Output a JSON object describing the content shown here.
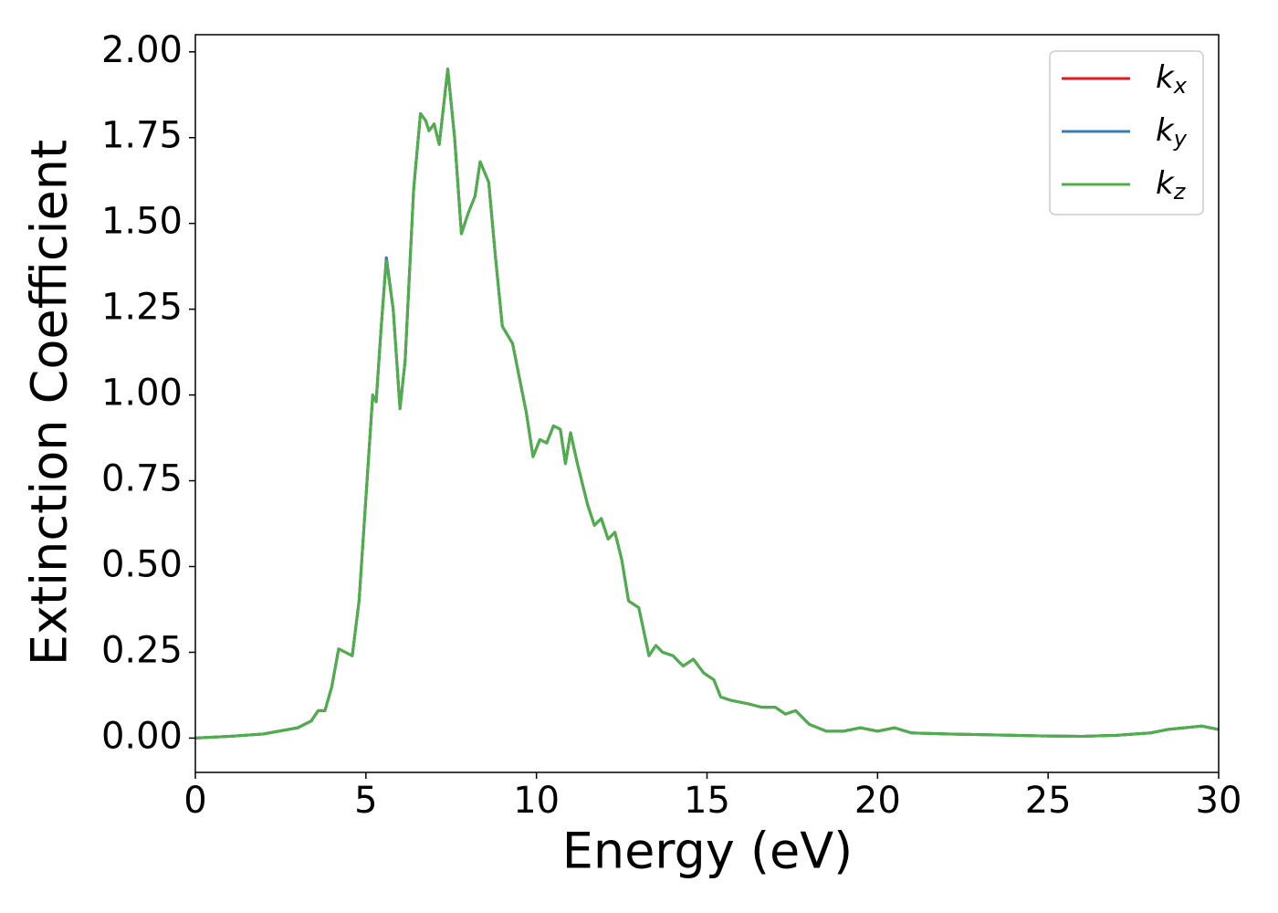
{
  "chart_data": {
    "type": "line",
    "xlabel": "Energy (eV)",
    "ylabel": "Extinction Coefficient",
    "x": [
      0,
      1,
      2,
      3,
      3.4,
      3.6,
      3.8,
      4.0,
      4.2,
      4.4,
      4.6,
      4.8,
      5.0,
      5.2,
      5.3,
      5.45,
      5.6,
      5.8,
      6.0,
      6.15,
      6.4,
      6.6,
      6.75,
      6.85,
      7.0,
      7.15,
      7.4,
      7.6,
      7.8,
      8.0,
      8.2,
      8.35,
      8.6,
      8.8,
      9.0,
      9.3,
      9.5,
      9.7,
      9.9,
      10.1,
      10.3,
      10.5,
      10.7,
      10.85,
      11.0,
      11.2,
      11.5,
      11.7,
      11.9,
      12.1,
      12.3,
      12.5,
      12.7,
      13.0,
      13.3,
      13.5,
      13.7,
      14.0,
      14.3,
      14.6,
      14.9,
      15.2,
      15.4,
      15.7,
      16.2,
      16.6,
      17.0,
      17.3,
      17.6,
      18.0,
      18.5,
      19.0,
      19.5,
      20.0,
      20.5,
      21,
      22,
      23,
      24,
      25,
      26,
      27,
      28,
      28.5,
      29,
      29.5,
      30
    ],
    "series": [
      {
        "name": "kx",
        "color": "#e41a1c",
        "values": [
          0,
          0.005,
          0.012,
          0.03,
          0.05,
          0.08,
          0.08,
          0.15,
          0.26,
          0.25,
          0.24,
          0.4,
          0.7,
          1.0,
          0.98,
          1.2,
          1.4,
          1.25,
          0.96,
          1.1,
          1.6,
          1.82,
          1.8,
          1.77,
          1.79,
          1.73,
          1.95,
          1.75,
          1.47,
          1.53,
          1.58,
          1.68,
          1.62,
          1.4,
          1.2,
          1.15,
          1.05,
          0.95,
          0.82,
          0.87,
          0.86,
          0.91,
          0.9,
          0.8,
          0.89,
          0.8,
          0.68,
          0.62,
          0.64,
          0.58,
          0.6,
          0.52,
          0.4,
          0.38,
          0.24,
          0.27,
          0.25,
          0.24,
          0.21,
          0.23,
          0.19,
          0.17,
          0.12,
          0.11,
          0.1,
          0.09,
          0.09,
          0.07,
          0.08,
          0.04,
          0.02,
          0.02,
          0.03,
          0.02,
          0.03,
          0.015,
          0.012,
          0.01,
          0.008,
          0.006,
          0.005,
          0.008,
          0.015,
          0.025,
          0.03,
          0.035,
          0.025
        ]
      },
      {
        "name": "ky",
        "color": "#377eb8",
        "values": [
          0,
          0.005,
          0.012,
          0.03,
          0.05,
          0.08,
          0.08,
          0.15,
          0.26,
          0.25,
          0.24,
          0.4,
          0.7,
          1.0,
          0.98,
          1.2,
          1.4,
          1.25,
          0.96,
          1.1,
          1.6,
          1.82,
          1.8,
          1.77,
          1.79,
          1.73,
          1.95,
          1.75,
          1.47,
          1.53,
          1.58,
          1.68,
          1.62,
          1.4,
          1.2,
          1.15,
          1.05,
          0.95,
          0.82,
          0.87,
          0.86,
          0.91,
          0.9,
          0.8,
          0.89,
          0.8,
          0.68,
          0.62,
          0.64,
          0.58,
          0.6,
          0.52,
          0.4,
          0.38,
          0.24,
          0.27,
          0.25,
          0.24,
          0.21,
          0.23,
          0.19,
          0.17,
          0.12,
          0.11,
          0.1,
          0.09,
          0.09,
          0.07,
          0.08,
          0.04,
          0.02,
          0.02,
          0.03,
          0.02,
          0.03,
          0.015,
          0.012,
          0.01,
          0.008,
          0.006,
          0.005,
          0.008,
          0.015,
          0.025,
          0.03,
          0.035,
          0.025
        ]
      },
      {
        "name": "kz",
        "color": "#4daf4a",
        "values": [
          0,
          0.005,
          0.012,
          0.03,
          0.05,
          0.08,
          0.08,
          0.15,
          0.26,
          0.25,
          0.24,
          0.4,
          0.7,
          1.0,
          0.98,
          1.2,
          1.39,
          1.25,
          0.96,
          1.1,
          1.6,
          1.82,
          1.8,
          1.77,
          1.79,
          1.73,
          1.95,
          1.75,
          1.47,
          1.53,
          1.58,
          1.68,
          1.62,
          1.4,
          1.2,
          1.15,
          1.05,
          0.95,
          0.82,
          0.87,
          0.86,
          0.91,
          0.9,
          0.8,
          0.89,
          0.8,
          0.68,
          0.62,
          0.64,
          0.58,
          0.6,
          0.52,
          0.4,
          0.38,
          0.24,
          0.27,
          0.25,
          0.24,
          0.21,
          0.23,
          0.19,
          0.17,
          0.12,
          0.11,
          0.1,
          0.09,
          0.09,
          0.07,
          0.08,
          0.04,
          0.02,
          0.02,
          0.03,
          0.02,
          0.03,
          0.015,
          0.012,
          0.01,
          0.008,
          0.006,
          0.005,
          0.008,
          0.015,
          0.025,
          0.03,
          0.035,
          0.025
        ]
      }
    ],
    "xlim": [
      0,
      30
    ],
    "xticks": [
      0,
      5,
      10,
      15,
      20,
      25,
      30
    ],
    "ylim": [
      -0.1,
      2.05
    ],
    "yticks": [
      {
        "value": 0,
        "label": "0.00"
      },
      0.25,
      {
        "value": 0.5,
        "label": "0.50"
      },
      0.75,
      {
        "value": 1,
        "label": "1.00"
      },
      1.25,
      {
        "value": 1.5,
        "label": "1.50"
      },
      1.75,
      {
        "value": 2,
        "label": "2.00"
      }
    ],
    "grid": false,
    "legend": "upper right"
  }
}
